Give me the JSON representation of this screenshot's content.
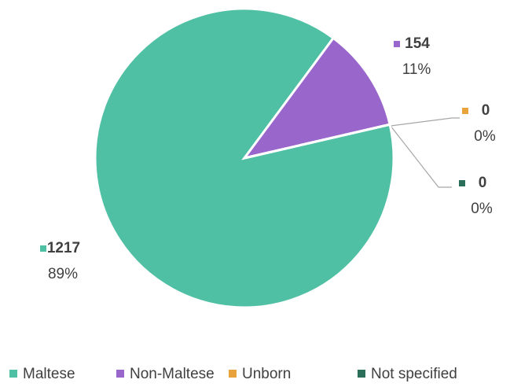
{
  "chart_data": {
    "type": "pie",
    "categories": [
      "Maltese",
      "Non-Maltese",
      "Unborn",
      "Not specified"
    ],
    "values": [
      1217,
      154,
      0,
      0
    ],
    "percent_labels": [
      "89%",
      "11%",
      "0%",
      "0%"
    ],
    "colors": [
      "#4fc0a4",
      "#9966cc",
      "#e8a33d",
      "#2b6e5a"
    ],
    "legend": "bottom"
  }
}
